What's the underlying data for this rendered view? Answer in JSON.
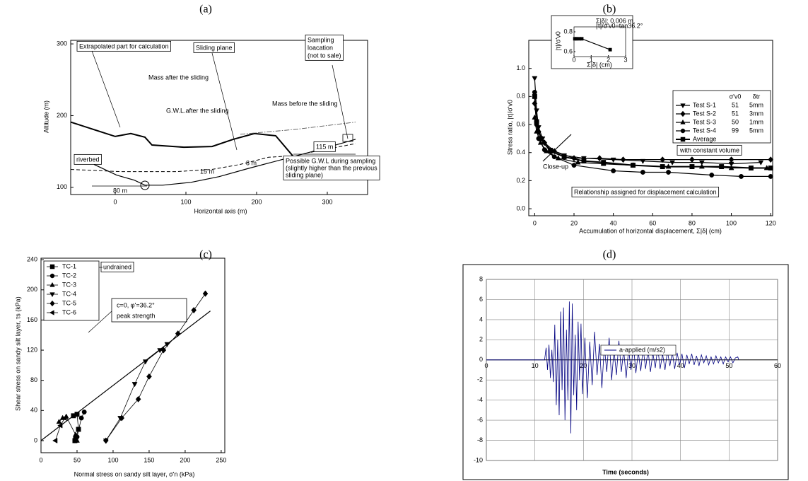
{
  "chart_data": [
    {
      "label": "(a)",
      "type": "line",
      "xlabel": "Horizontal axis   (m)",
      "ylabel": "Altitude   (m)",
      "xlim": [
        -63,
        357
      ],
      "ylim": [
        90,
        305
      ],
      "xticks": [
        0,
        100,
        200,
        300
      ],
      "yticks": [
        100,
        200,
        300
      ],
      "series": [
        {
          "color": "#000000",
          "style": "thick",
          "x": [
            -63,
            0,
            22,
            42,
            52,
            97,
            137,
            167,
            197,
            227,
            252
          ],
          "values": [
            191,
            171,
            175,
            170,
            159,
            156,
            157,
            167,
            175,
            172,
            143
          ]
        },
        {
          "color": "#000000",
          "style": "solid",
          "x": [
            -30,
            2,
            27,
            42,
            67,
            107,
            147,
            187,
            237,
            287,
            340
          ],
          "values": [
            132,
            117,
            110,
            103,
            103,
            107,
            115,
            126,
            139,
            152,
            167
          ]
        },
        {
          "color": "#000000",
          "style": "dashed",
          "x": [
            -63,
            7,
            87,
            137,
            177,
            217,
            252
          ],
          "values": [
            125,
            122,
            122,
            125,
            132,
            142,
            144
          ]
        },
        {
          "color": "#555555",
          "style": "dashdot",
          "x": [
            177,
            257,
            340
          ],
          "values": [
            174,
            181,
            191
          ]
        },
        {
          "color": "#000000",
          "style": "dashed",
          "x": [
            277,
            340
          ],
          "values": [
            149,
            161
          ]
        }
      ],
      "annotations": [
        "Extrapolated part for calculation",
        "Sliding plane",
        [
          "Sampling",
          "loacation",
          "(not to sale)"
        ],
        "Mass after the sliding",
        "Mass before the sliding",
        "G.W.L.after the sliding",
        "riverbed",
        "80 m",
        "15 m",
        "8 m",
        "115 m",
        [
          "Possible G.W.L during sampling",
          "(slightly higher than the previous",
          "sliding plane)"
        ]
      ]
    },
    {
      "label": "(b)",
      "type": "line",
      "xlabel": "Accumulation of horizontal displacement,  Σ|δ| (cm)",
      "ylabel": "Stress ratio,  |τ|/σ'v0",
      "xlim": [
        -3,
        121
      ],
      "ylim": [
        -0.05,
        1.2
      ],
      "xticks": [
        0,
        20,
        40,
        60,
        80,
        100,
        120
      ],
      "yticks": [
        {
          "value": 0,
          "label": "0.0"
        },
        0.2,
        0.4,
        0.6,
        0.8,
        {
          "value": 1,
          "label": "1.0"
        }
      ],
      "legend_headers": [
        "σ'v0",
        "δtr"
      ],
      "series": [
        {
          "name": "Test  S-1",
          "marker": "triangle-down",
          "color": "#000000",
          "style": "solid",
          "sigma_v0": 51,
          "delta": "5mm",
          "x": [
            0,
            1,
            2,
            4,
            8,
            15,
            25,
            40,
            55,
            70,
            85,
            100,
            115
          ],
          "values": [
            0.93,
            0.7,
            0.58,
            0.5,
            0.42,
            0.38,
            0.36,
            0.35,
            0.34,
            0.33,
            0.33,
            0.32,
            0.33
          ]
        },
        {
          "name": "Test  S-2",
          "marker": "diamond",
          "color": "#000000",
          "style": "solid",
          "sigma_v0": 51,
          "delta": "3mm",
          "x": [
            0,
            1,
            2,
            5,
            10,
            20,
            33,
            45,
            65,
            80,
            100,
            120
          ],
          "values": [
            0.75,
            0.62,
            0.55,
            0.47,
            0.41,
            0.36,
            0.36,
            0.35,
            0.35,
            0.35,
            0.35,
            0.35
          ]
        },
        {
          "name": "Test  S-3",
          "marker": "triangle-up",
          "color": "#000000",
          "style": "solid",
          "sigma_v0": 50,
          "delta": "1mm",
          "x": [
            0,
            1,
            3,
            6,
            12,
            22,
            35,
            50,
            68,
            85,
            100,
            118
          ],
          "values": [
            0.65,
            0.55,
            0.47,
            0.41,
            0.36,
            0.33,
            0.32,
            0.31,
            0.3,
            0.3,
            0.29,
            0.29
          ]
        },
        {
          "name": "Test  S-4",
          "marker": "circle",
          "color": "#000000",
          "style": "solid",
          "sigma_v0": 99,
          "delta": "5mm",
          "x": [
            0,
            1,
            2,
            5,
            10,
            20,
            40,
            55,
            68,
            90,
            105,
            120
          ],
          "values": [
            0.83,
            0.6,
            0.5,
            0.42,
            0.37,
            0.31,
            0.27,
            0.26,
            0.26,
            0.24,
            0.23,
            0.23
          ]
        },
        {
          "name": "Average",
          "marker": "square",
          "color": "#000000",
          "style": "thick",
          "x": [
            0,
            1,
            3,
            8,
            15,
            25,
            35,
            50,
            65,
            80,
            95,
            110,
            120
          ],
          "values": [
            0.8,
            0.62,
            0.5,
            0.41,
            0.37,
            0.34,
            0.33,
            0.31,
            0.3,
            0.3,
            0.3,
            0.29,
            0.29
          ]
        }
      ],
      "inset": {
        "text": [
          "Σ|δ|: 0.006 m,",
          "|τ|/σ'v0=tan36.2°"
        ],
        "xlabel": "Σ|δ| (cm)",
        "ylabel": "|τ|/σ'v0",
        "xlim": [
          0,
          3
        ],
        "ylim": [
          0.55,
          0.85
        ],
        "xticks": [
          0,
          1,
          2,
          3
        ],
        "yticks": [
          0.6,
          0.8
        ],
        "x": [
          0.05,
          0.15,
          0.3,
          0.45,
          2.1
        ],
        "values": [
          0.73,
          0.73,
          0.73,
          0.73,
          0.62
        ]
      },
      "annotations": [
        "Close-up",
        "with constant volume",
        "Relationship assigned for displacement calculation"
      ]
    },
    {
      "label": "(c)",
      "type": "line",
      "xlabel": "Normal stress on sandy silt layer, σ'n  (kPa)",
      "ylabel": "Shear stress on sandy silt layer, τs  (kPa)",
      "xlim": [
        0,
        255
      ],
      "ylim": [
        -16,
        242
      ],
      "xticks": [
        0,
        50,
        100,
        150,
        200,
        250
      ],
      "yticks": [
        0,
        40,
        80,
        120,
        160,
        200,
        240
      ],
      "series": [
        {
          "name": "TC-1",
          "marker": "square",
          "color": "#000000",
          "style": "thin",
          "x": [
            45,
            50,
            52,
            48,
            47
          ],
          "values": [
            33,
            35,
            15,
            3,
            0
          ]
        },
        {
          "name": "TC-2",
          "marker": "circle",
          "color": "#000000",
          "style": "thin",
          "x": [
            47,
            50,
            56,
            60
          ],
          "values": [
            0,
            5,
            30,
            38
          ]
        },
        {
          "name": "TC-3",
          "marker": "triangle-up",
          "color": "#000000",
          "style": "thin",
          "x": [
            25,
            30,
            35,
            48,
            50
          ],
          "values": [
            25,
            30,
            32,
            8,
            0
          ]
        },
        {
          "name": "TC-4",
          "marker": "triangle-down",
          "color": "#000000",
          "style": "thin",
          "x": [
            90,
            110,
            130,
            145,
            165,
            175
          ],
          "values": [
            0,
            30,
            75,
            105,
            120,
            128
          ]
        },
        {
          "name": "TC-5",
          "marker": "diamond",
          "color": "#000000",
          "style": "thin",
          "x": [
            90,
            112,
            135,
            150,
            170,
            190,
            212,
            228
          ],
          "values": [
            0,
            30,
            55,
            85,
            120,
            142,
            173,
            195
          ]
        },
        {
          "name": "TC-6",
          "marker": "triangle-left",
          "color": "#000000",
          "style": "thin",
          "x": [
            20,
            27,
            33
          ],
          "values": [
            0,
            20,
            30
          ]
        }
      ],
      "failure_line": {
        "x": [
          0,
          235
        ],
        "values": [
          0,
          172
        ]
      },
      "annotations": [
        "undrained",
        "c=0, φ'=36.2°",
        "peak strength"
      ]
    },
    {
      "label": "(d)",
      "type": "line",
      "xlabel": "Time (seconds)",
      "grid": true,
      "legend": "top",
      "xlim": [
        0,
        60
      ],
      "ylim": [
        -10,
        8
      ],
      "xticks": [
        0,
        10,
        20,
        30,
        40,
        50,
        60
      ],
      "yticks": [
        -10,
        -8,
        -6,
        -4,
        -2,
        0,
        2,
        4,
        6,
        8
      ],
      "series": [
        {
          "name": "a-applied (m/s2)",
          "color": "#000080",
          "style": "thin",
          "x": [
            0,
            12,
            12.3,
            12.6,
            12.9,
            13.2,
            13.5,
            13.8,
            14.1,
            14.4,
            14.7,
            15.0,
            15.3,
            15.6,
            15.9,
            16.2,
            16.5,
            16.8,
            17.1,
            17.4,
            17.7,
            18.0,
            18.3,
            18.6,
            18.9,
            19.2,
            19.5,
            19.8,
            20.3,
            20.8,
            21.3,
            21.8,
            22.3,
            22.8,
            23.3,
            23.8,
            24.3,
            24.8,
            25.3,
            25.8,
            26.3,
            26.8,
            27.3,
            27.8,
            28.3,
            28.8,
            29.3,
            29.8,
            30.3,
            30.8,
            31.3,
            31.8,
            32.3,
            32.8,
            33.3,
            33.8,
            34.3,
            34.8,
            35.3,
            35.8,
            36.3,
            36.8,
            37.3,
            37.8,
            38.3,
            38.8,
            39.3,
            39.8,
            40.3,
            40.8,
            41.3,
            41.8,
            42.3,
            42.8,
            43.3,
            43.8,
            44.3,
            44.8,
            45.3,
            45.8,
            46.3,
            46.8,
            47.3,
            47.8,
            48.3,
            48.8,
            49.3,
            49.8,
            50.3,
            50.8,
            51.3,
            51.8,
            52
          ],
          "values": [
            0,
            0,
            1.2,
            -1.0,
            1.5,
            -1.8,
            1.0,
            -2.2,
            3.5,
            -4.5,
            2.0,
            -5.5,
            4.8,
            -3.0,
            5.2,
            -6.0,
            3.0,
            -4.0,
            5.8,
            -7.3,
            5.6,
            -3.5,
            2.5,
            -5.0,
            3.8,
            -2.0,
            3.6,
            -3.4,
            2.2,
            -3.8,
            1.8,
            -2.5,
            2.8,
            -1.5,
            1.6,
            -2.8,
            1.4,
            -1.2,
            2.2,
            -2.0,
            1.0,
            -1.5,
            1.9,
            -1.2,
            1.0,
            -1.8,
            1.1,
            -1.0,
            1.5,
            -1.3,
            0.8,
            -1.1,
            1.2,
            -0.9,
            1.0,
            -1.2,
            0.7,
            -0.8,
            1.3,
            -0.9,
            0.6,
            -1.0,
            0.9,
            -0.6,
            0.8,
            -0.9,
            0.7,
            -0.5,
            0.6,
            -0.8,
            0.5,
            -0.4,
            0.6,
            -0.5,
            0.4,
            -0.6,
            0.5,
            -0.3,
            0.4,
            -0.5,
            0.3,
            -0.4,
            0.4,
            -0.3,
            0.3,
            -0.4,
            0.3,
            -0.2,
            0.3,
            -0.3,
            0.2,
            0.3,
            0
          ]
        }
      ]
    }
  ]
}
